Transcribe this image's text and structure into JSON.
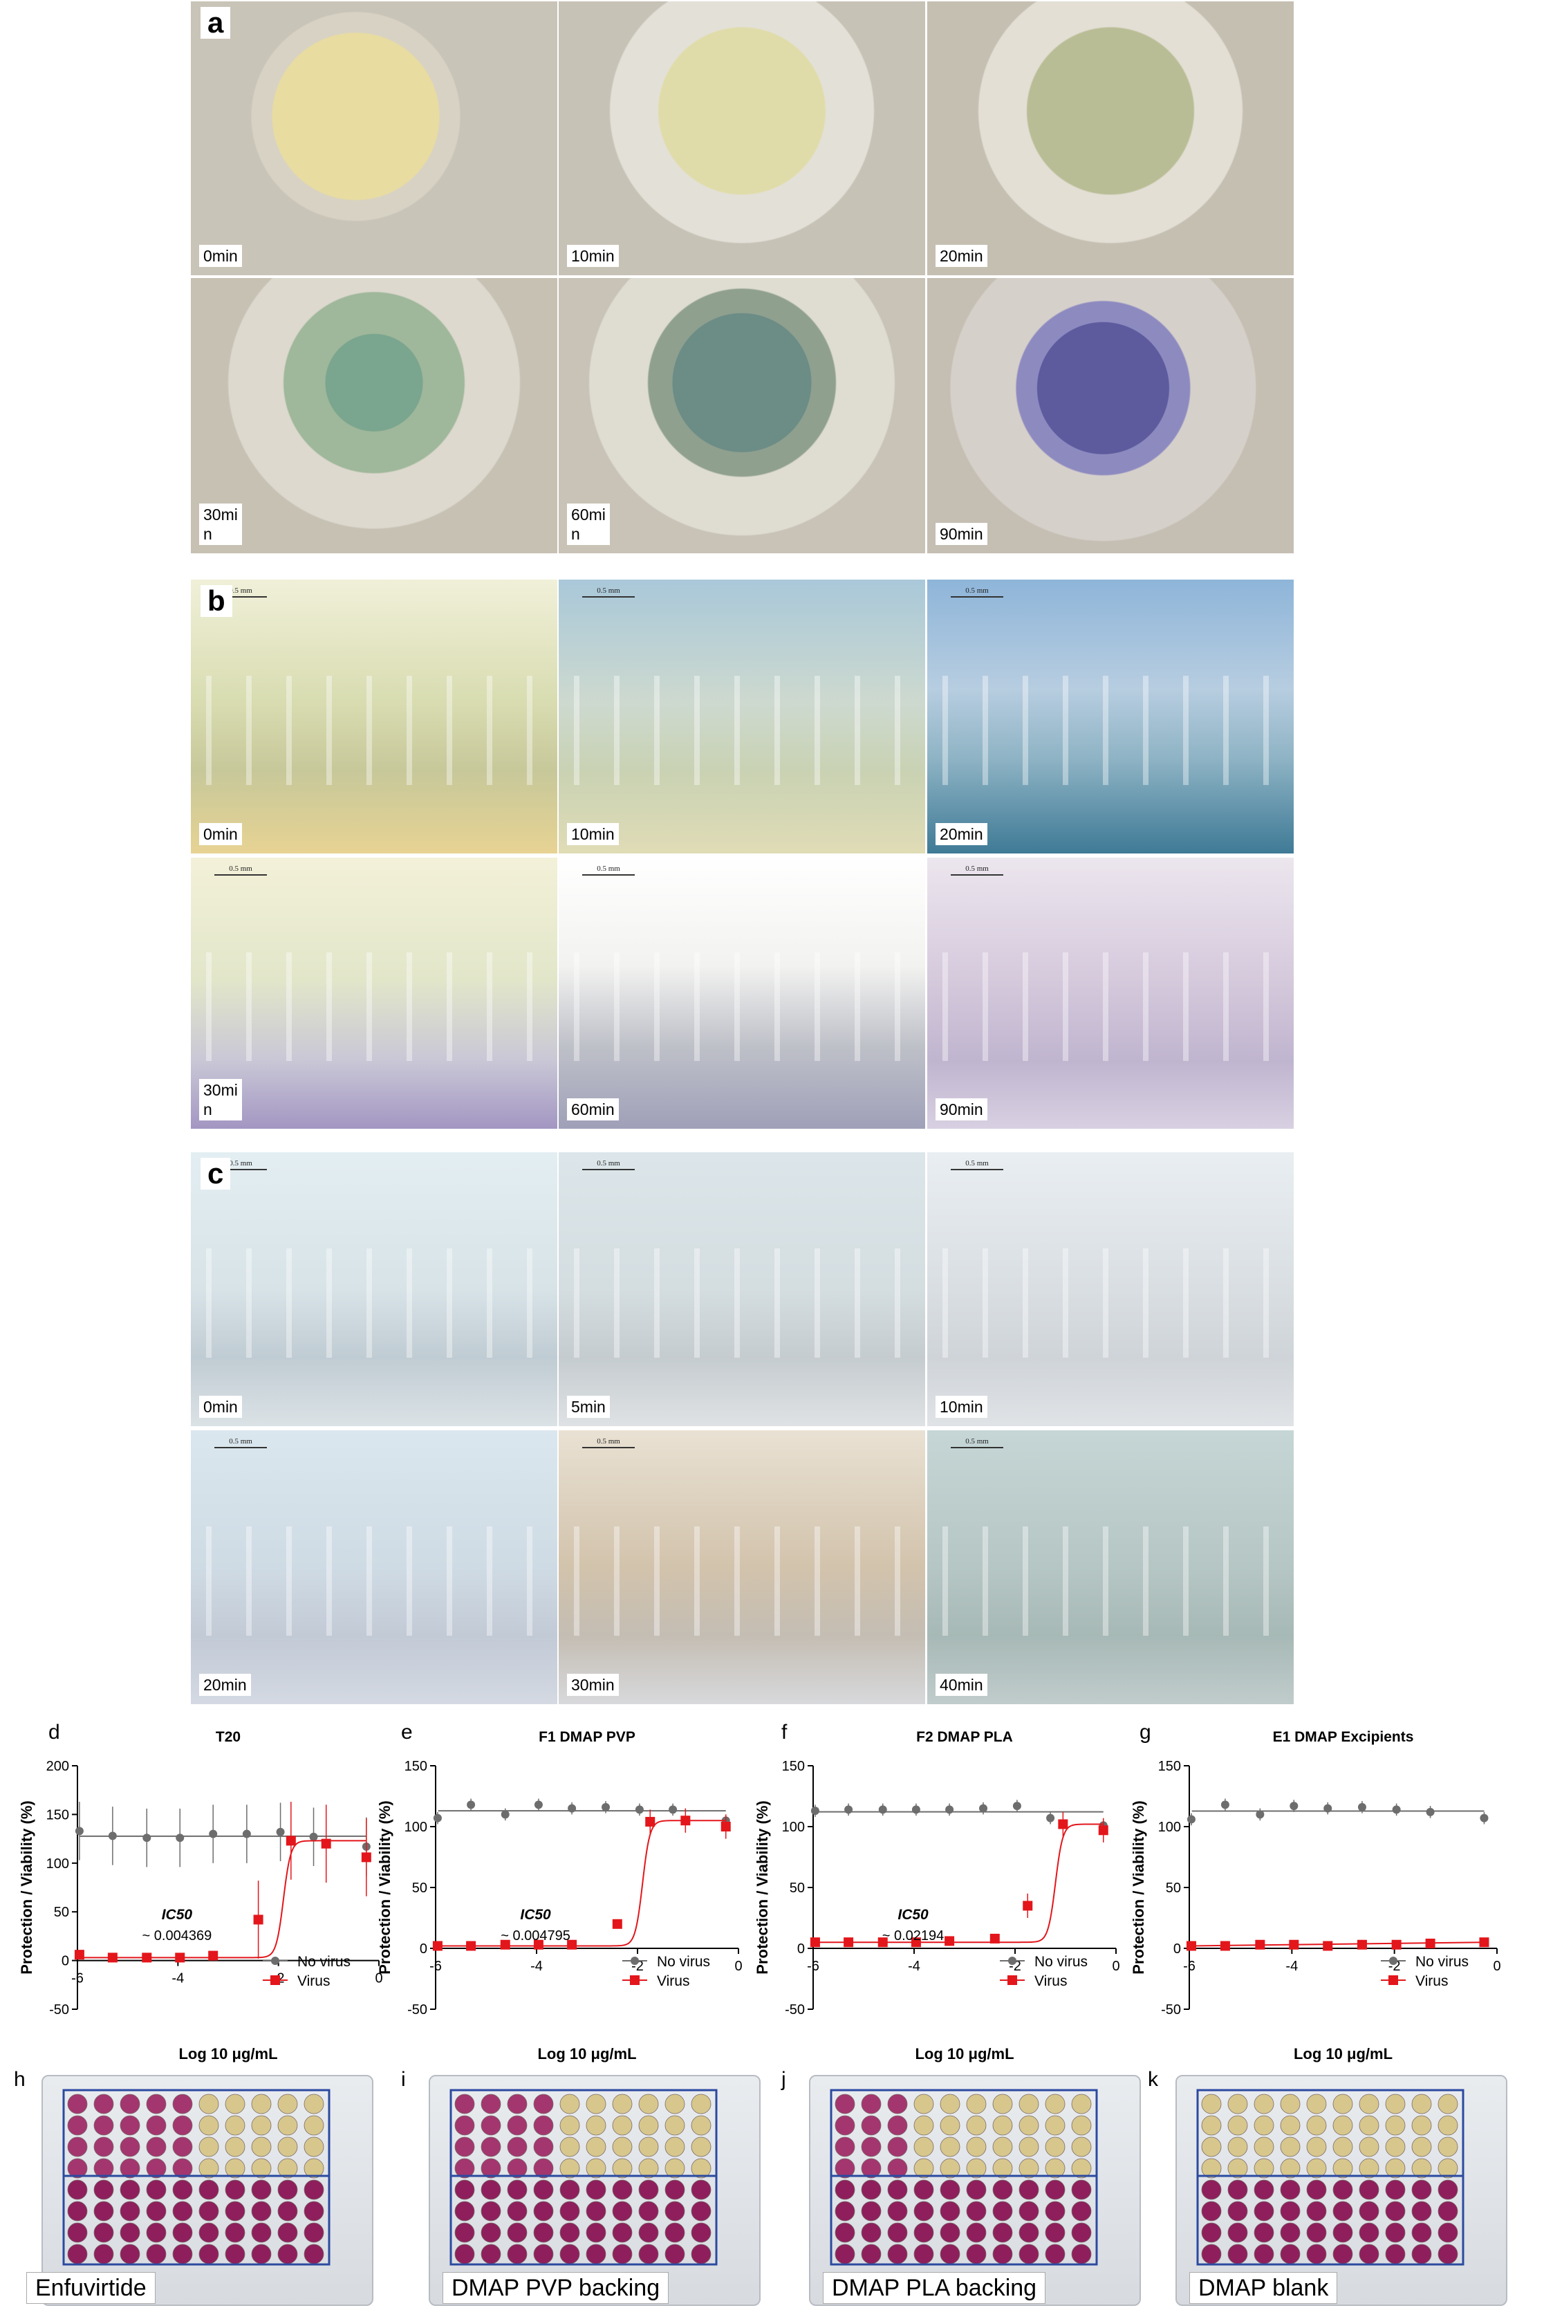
{
  "panels": {
    "a": {
      "letter": "a",
      "times": [
        "0min",
        "10min",
        "20min",
        "30mi\nn",
        "60mi\nn",
        "90min"
      ]
    },
    "b": {
      "letter": "b",
      "scale": "0.5 mm",
      "times": [
        "0min",
        "10min",
        "20min",
        "30mi\nn",
        "60min",
        "90min"
      ]
    },
    "c": {
      "letter": "c",
      "scale": "0.5 mm",
      "times": [
        "0min",
        "5min",
        "10min",
        "20min",
        "30min",
        "40min"
      ]
    }
  },
  "chart_letters": [
    "d",
    "e",
    "f",
    "g"
  ],
  "chart_data": [
    {
      "type": "scatter",
      "title": "T20",
      "xlabel": "Log 10 μg/mL",
      "ylabel": "Protection / Viability (%)",
      "xlim": [
        -6,
        0
      ],
      "ylim": [
        -50,
        200
      ],
      "yticks": [
        -50,
        0,
        50,
        100,
        150,
        200
      ],
      "xticks": [
        -6,
        -4,
        -2,
        0
      ],
      "ic50_label": "IC50",
      "ic50_value": "~ 0.004369",
      "series": [
        {
          "name": "No virus",
          "color": "#6d6d6d",
          "x": [
            -5.96,
            -5.3,
            -4.62,
            -3.96,
            -3.3,
            -2.63,
            -1.96,
            -1.3,
            -0.25
          ],
          "y": [
            133,
            128,
            126,
            126,
            130,
            130,
            132,
            127,
            117
          ]
        },
        {
          "name": "Virus",
          "color": "#e3161b",
          "x": [
            -5.96,
            -5.3,
            -4.62,
            -3.96,
            -3.3,
            -2.4,
            -1.75,
            -1.05,
            -0.25
          ],
          "y": [
            6,
            3,
            3,
            3,
            5,
            42,
            123,
            120,
            106
          ]
        }
      ]
    },
    {
      "type": "scatter",
      "title": "F1 DMAP PVP",
      "xlabel": "Log 10 μg/mL",
      "ylabel": "Protection / Viability (%)",
      "xlim": [
        -6,
        0
      ],
      "ylim": [
        -50,
        150
      ],
      "yticks": [
        -50,
        0,
        50,
        100,
        150
      ],
      "xticks": [
        -6,
        -4,
        -2,
        0
      ],
      "ic50_label": "IC50",
      "ic50_value": "~ 0.004795",
      "series": [
        {
          "name": "No virus",
          "color": "#6d6d6d",
          "x": [
            -5.96,
            -5.3,
            -4.62,
            -3.96,
            -3.3,
            -2.63,
            -1.96,
            -1.3,
            -0.25
          ],
          "y": [
            107,
            118,
            110,
            118,
            115,
            116,
            114,
            114,
            105
          ]
        },
        {
          "name": "Virus",
          "color": "#e3161b",
          "x": [
            -5.96,
            -5.3,
            -4.62,
            -3.96,
            -3.3,
            -2.4,
            -1.75,
            -1.05,
            -0.25
          ],
          "y": [
            2,
            2,
            3,
            3,
            3,
            20,
            104,
            105,
            100
          ]
        }
      ]
    },
    {
      "type": "scatter",
      "title": "F2 DMAP PLA",
      "xlabel": "Log 10 μg/mL",
      "ylabel": "Protection / Viability (%)",
      "xlim": [
        -6,
        0
      ],
      "ylim": [
        -50,
        150
      ],
      "yticks": [
        -50,
        0,
        50,
        100,
        150
      ],
      "xticks": [
        -6,
        -4,
        -2,
        0
      ],
      "ic50_label": "IC50",
      "ic50_value": "~ 0.02194",
      "series": [
        {
          "name": "No virus",
          "color": "#6d6d6d",
          "x": [
            -5.96,
            -5.3,
            -4.62,
            -3.96,
            -3.3,
            -2.63,
            -1.96,
            -1.3,
            -0.25
          ],
          "y": [
            113,
            114,
            114,
            114,
            114,
            115,
            117,
            107,
            101
          ]
        },
        {
          "name": "Virus",
          "color": "#e3161b",
          "x": [
            -5.96,
            -5.3,
            -4.62,
            -3.96,
            -3.3,
            -2.4,
            -1.75,
            -1.05,
            -0.25
          ],
          "y": [
            5,
            5,
            5,
            5,
            6,
            8,
            35,
            102,
            97
          ]
        }
      ]
    },
    {
      "type": "scatter",
      "title": "E1 DMAP Excipients",
      "xlabel": "Log 10 μg/mL",
      "ylabel": "Protection / Viability (%)",
      "xlim": [
        -6,
        0
      ],
      "ylim": [
        -50,
        150
      ],
      "yticks": [
        -50,
        0,
        50,
        100,
        150
      ],
      "xticks": [
        -6,
        -4,
        -2,
        0
      ],
      "ic50_label": "",
      "ic50_value": "",
      "series": [
        {
          "name": "No virus",
          "color": "#6d6d6d",
          "x": [
            -5.96,
            -5.3,
            -4.62,
            -3.96,
            -3.3,
            -2.63,
            -1.96,
            -1.3,
            -0.25
          ],
          "y": [
            106,
            118,
            110,
            117,
            115,
            116,
            114,
            112,
            107
          ]
        },
        {
          "name": "Virus",
          "color": "#e3161b",
          "x": [
            -5.96,
            -5.3,
            -4.62,
            -3.96,
            -3.3,
            -2.63,
            -1.96,
            -1.3,
            -0.25
          ],
          "y": [
            2,
            2,
            3,
            3,
            2,
            3,
            3,
            4,
            5
          ]
        }
      ]
    }
  ],
  "plates": [
    {
      "letter": "h",
      "label": "Enfuvirtide"
    },
    {
      "letter": "i",
      "label": "DMAP PVP backing"
    },
    {
      "letter": "j",
      "label": "DMAP PLA backing"
    },
    {
      "letter": "k",
      "label": "DMAP blank"
    }
  ]
}
